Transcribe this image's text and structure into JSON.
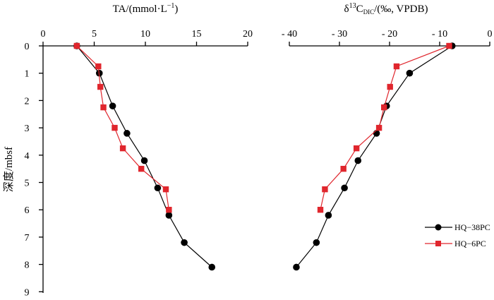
{
  "chart_data": [
    {
      "id": "ta",
      "type": "line",
      "title_main": "TA/",
      "title_unit": "(mmol·L",
      "title_sup": "−1",
      "title_close": ")",
      "xlim": [
        0,
        20
      ],
      "xticks": [
        0,
        5,
        10,
        15,
        20
      ],
      "xtick_labels": [
        "0",
        "5",
        "10",
        "15",
        "20"
      ],
      "ylim": [
        0,
        9
      ],
      "yticks": [
        0,
        1,
        2,
        3,
        4,
        5,
        6,
        7,
        8,
        9
      ],
      "ylabel": "深度/mbsf",
      "series": [
        {
          "name": "HQ−38PC",
          "color": "#000000",
          "marker": "circle",
          "points": [
            [
              3.3,
              0
            ],
            [
              5.5,
              1.0
            ],
            [
              6.8,
              2.2
            ],
            [
              8.2,
              3.2
            ],
            [
              9.9,
              4.2
            ],
            [
              11.2,
              5.2
            ],
            [
              12.3,
              6.2
            ],
            [
              13.8,
              7.2
            ],
            [
              16.5,
              8.1
            ]
          ]
        },
        {
          "name": "HQ−6PC",
          "color": "#e0262d",
          "marker": "square",
          "points": [
            [
              3.3,
              0
            ],
            [
              5.4,
              0.75
            ],
            [
              5.6,
              1.5
            ],
            [
              5.9,
              2.25
            ],
            [
              7.0,
              3.0
            ],
            [
              7.8,
              3.75
            ],
            [
              9.6,
              4.5
            ],
            [
              12.0,
              5.25
            ],
            [
              12.3,
              6.0
            ]
          ]
        }
      ]
    },
    {
      "id": "d13c",
      "type": "line",
      "title_delta": "δ",
      "title_sup": "13",
      "title_c": "C",
      "title_sub": "DIC",
      "title_rest": "/(‰, VPDB)",
      "xlim": [
        -40,
        0
      ],
      "xticks": [
        -40,
        -30,
        -20,
        -10,
        0
      ],
      "xtick_labels": [
        "- 40",
        "- 30",
        "- 20",
        "- 10",
        "0"
      ],
      "ylim": [
        0,
        9
      ],
      "series": [
        {
          "name": "HQ−38PC",
          "color": "#000000",
          "marker": "circle",
          "points": [
            [
              -7.5,
              0
            ],
            [
              -16.0,
              1.0
            ],
            [
              -20.6,
              2.2
            ],
            [
              -22.6,
              3.2
            ],
            [
              -26.3,
              4.2
            ],
            [
              -29.0,
              5.2
            ],
            [
              -32.2,
              6.2
            ],
            [
              -34.6,
              7.2
            ],
            [
              -38.6,
              8.1
            ]
          ]
        },
        {
          "name": "HQ−6PC",
          "color": "#e0262d",
          "marker": "square",
          "points": [
            [
              -8.1,
              0
            ],
            [
              -18.6,
              0.75
            ],
            [
              -19.9,
              1.5
            ],
            [
              -21.1,
              2.25
            ],
            [
              -22.1,
              3.0
            ],
            [
              -26.6,
              3.75
            ],
            [
              -29.2,
              4.5
            ],
            [
              -32.9,
              5.25
            ],
            [
              -33.8,
              6.0
            ]
          ]
        }
      ]
    }
  ],
  "legend": {
    "items": [
      {
        "label": "HQ−38PC",
        "color": "#000000",
        "marker": "circle"
      },
      {
        "label": "HQ−6PC",
        "color": "#e0262d",
        "marker": "square"
      }
    ]
  }
}
